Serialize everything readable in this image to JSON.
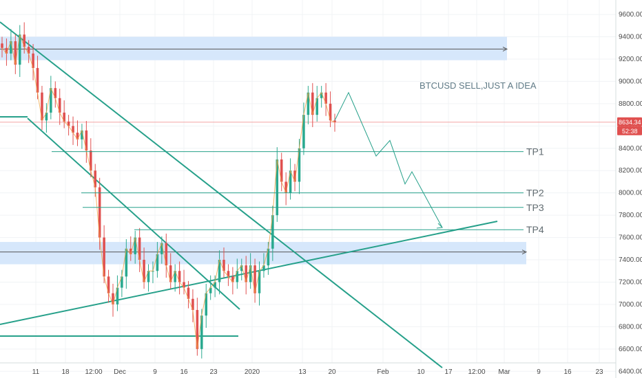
{
  "chart_data": {
    "type": "candlestick",
    "symbol": "BTCUSD",
    "annotation": "BTCUSD SELL,JUST A IDEA",
    "y_axis": {
      "ticks": [
        9600,
        9400,
        9200,
        9000,
        8800,
        8600,
        8400,
        8200,
        8000,
        7800,
        7600,
        7400,
        7200,
        7000,
        6800,
        6600,
        6400
      ],
      "tick_labels": [
        "9600.00",
        "9400.00",
        "9200.00",
        "9000.00",
        "8800.00",
        "8600.00",
        "8400.00",
        "8200.00",
        "8000.00",
        "7800.00",
        "7600.00",
        "7400.00",
        "7200.00",
        "7000.00",
        "6800.00",
        "6600.00",
        "6400.00"
      ],
      "range": [
        6340,
        9730
      ]
    },
    "x_axis": {
      "labels": [
        "11",
        "18",
        "12:00",
        "Dec",
        "9",
        "16",
        "23",
        "2020",
        "13",
        "20",
        "Feb",
        "10",
        "17",
        "12:00",
        "Mar",
        "9",
        "16",
        "23"
      ]
    },
    "current_price": {
      "price": "8634.34",
      "countdown": "52:38",
      "value": 8634.34
    },
    "targets": [
      {
        "label": "TP1",
        "price": 8370
      },
      {
        "label": "TP2",
        "price": 8000
      },
      {
        "label": "TP3",
        "price": 7870
      },
      {
        "label": "TP4",
        "price": 7670
      }
    ],
    "resistance_zone": {
      "price_low": 9190,
      "price_high": 9400,
      "line_price": 9290
    },
    "support_zone": {
      "price_low": 7360,
      "price_high": 7560,
      "line_price": 7470
    },
    "support_line_price": 6535,
    "projection": [
      8650,
      8900,
      8330,
      8470,
      8080,
      8190,
      7690
    ],
    "series": [
      {
        "name": "BTCUSD",
        "closes": [
          9300,
          9250,
          9360,
          9150,
          9420,
          9310,
          9250,
          9120,
          8900,
          8650,
          8720,
          8940,
          8850,
          8720,
          8640,
          8600,
          8540,
          8480,
          8560,
          8380,
          8200,
          8050,
          7600,
          7250,
          7100,
          7000,
          7150,
          7250,
          7500,
          7450,
          7600,
          7400,
          7200,
          7300,
          7300,
          7450,
          7550,
          7350,
          7200,
          7300,
          7200,
          7150,
          7050,
          6950,
          6600,
          6900,
          7100,
          7150,
          7200,
          7400,
          7300,
          7250,
          7200,
          7300,
          7350,
          7200,
          7350,
          7100,
          7300,
          7350,
          7500,
          7800,
          8300,
          8100,
          8000,
          8200,
          8100,
          8400,
          8700,
          8900,
          8700,
          8850,
          8900,
          8800,
          8650,
          8634
        ]
      }
    ]
  }
}
